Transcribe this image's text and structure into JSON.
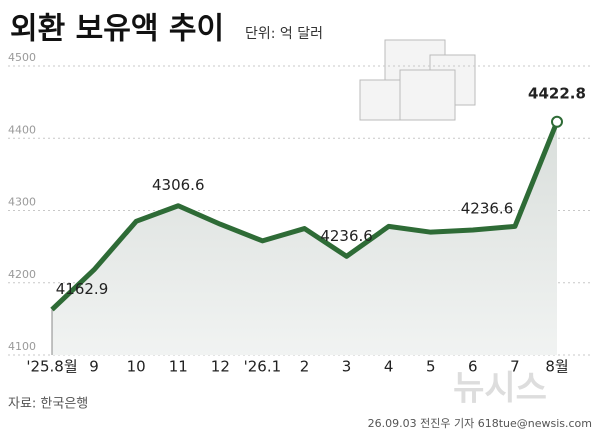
{
  "chart_data": {
    "type": "line",
    "title": "외환 보유액 추이",
    "subtitle": "단위: 억 달러",
    "categories": [
      "'25.8월",
      "9",
      "10",
      "11",
      "12",
      "'26.1",
      "2",
      "3",
      "4",
      "5",
      "6",
      "7",
      "8월"
    ],
    "series": [
      {
        "name": "외환 보유액",
        "color": "#2e6b36",
        "values": [
          4162.9,
          4218,
          4285,
          4306.6,
          4281,
          4258,
          4275,
          4236.6,
          4278,
          4270,
          4273,
          4278,
          4422.8
        ],
        "value_labels": [
          "4162.9",
          null,
          null,
          "4306.6",
          null,
          null,
          null,
          "4236.6",
          null,
          null,
          null,
          null,
          "4422.8"
        ]
      }
    ],
    "annotations": [
      "4236.6"
    ],
    "ylim": [
      4100,
      4500
    ],
    "yticks": [
      4100,
      4200,
      4300,
      4400,
      4500
    ],
    "grid": true,
    "source": "자료: 한국은행",
    "credit": "26.09.03 전진우 기자 618tue@newsis.com",
    "watermark": "뉴시스"
  }
}
